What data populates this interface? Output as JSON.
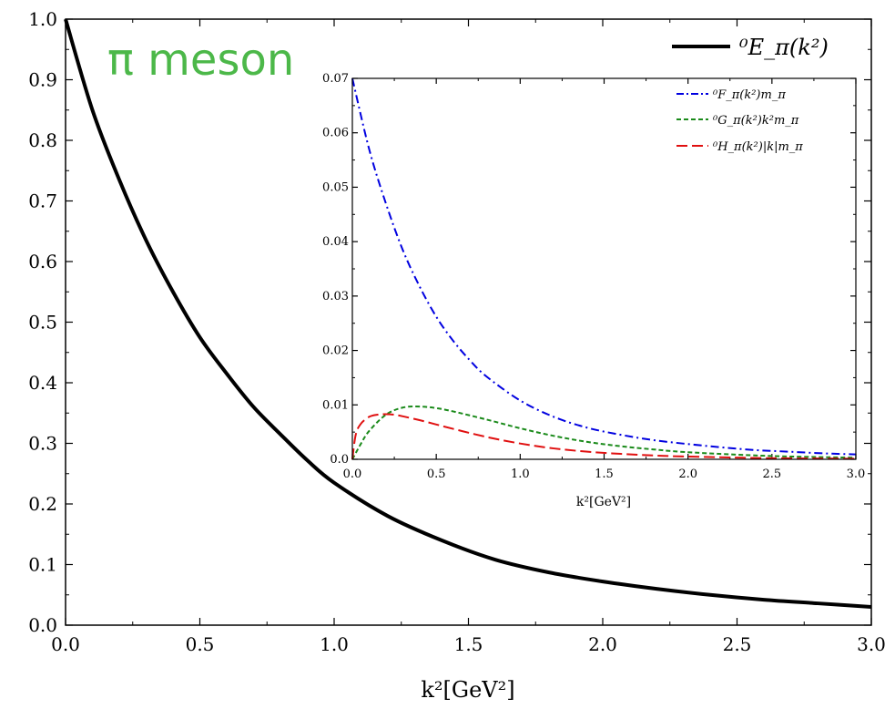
{
  "chart_data": [
    {
      "type": "line",
      "annotation": "π meson",
      "annotation_color": "#4cb849",
      "xlabel": "k²[GeV²]",
      "ylabel": "",
      "xlim": [
        0.0,
        3.0
      ],
      "ylim": [
        0.0,
        1.0
      ],
      "xticks": [
        "0.0",
        "0.5",
        "1.0",
        "1.5",
        "2.0",
        "2.5",
        "3.0"
      ],
      "yticks": [
        "0.0",
        "0.1",
        "0.2",
        "0.3",
        "0.4",
        "0.5",
        "0.6",
        "0.7",
        "0.8",
        "0.9",
        "1.0"
      ],
      "legend_position": "top-right",
      "series": [
        {
          "name": "⁰E_π(k²)",
          "color": "#000000",
          "style": "solid",
          "x": [
            0.0,
            0.1,
            0.2,
            0.3,
            0.4,
            0.5,
            0.6,
            0.7,
            0.8,
            0.9,
            1.0,
            1.2,
            1.4,
            1.6,
            1.8,
            2.0,
            2.2,
            2.4,
            2.6,
            2.8,
            3.0
          ],
          "y": [
            1.0,
            0.85,
            0.735,
            0.635,
            0.55,
            0.475,
            0.415,
            0.36,
            0.315,
            0.272,
            0.235,
            0.18,
            0.14,
            0.108,
            0.087,
            0.072,
            0.06,
            0.05,
            0.042,
            0.036,
            0.03
          ]
        }
      ]
    },
    {
      "type": "line",
      "xlabel": "k²[GeV²]",
      "ylabel": "",
      "xlim": [
        0.0,
        3.0
      ],
      "ylim": [
        0.0,
        0.07
      ],
      "xticks": [
        "0.0",
        "0.5",
        "1.0",
        "1.5",
        "2.0",
        "2.5",
        "3.0"
      ],
      "yticks": [
        "0.0",
        "0.01",
        "0.02",
        "0.03",
        "0.04",
        "0.05",
        "0.06",
        "0.07"
      ],
      "legend_position": "top-right",
      "series": [
        {
          "name": "⁰F_π(k²)m_π",
          "color": "#0000e0",
          "style": "dashdot",
          "x": [
            0.0,
            0.1,
            0.2,
            0.3,
            0.4,
            0.5,
            0.6,
            0.7,
            0.8,
            1.0,
            1.2,
            1.4,
            1.6,
            1.8,
            2.0,
            2.2,
            2.4,
            2.6,
            2.8,
            3.0
          ],
          "y": [
            0.07,
            0.057,
            0.047,
            0.0385,
            0.0318,
            0.0262,
            0.0218,
            0.0182,
            0.0152,
            0.0108,
            0.0078,
            0.0058,
            0.0045,
            0.0035,
            0.0028,
            0.0022,
            0.0017,
            0.0014,
            0.0011,
            0.0009
          ]
        },
        {
          "name": "⁰G_π(k²)k²m_π",
          "color": "#1a8a1a",
          "style": "dashed",
          "x": [
            0.0,
            0.05,
            0.1,
            0.2,
            0.3,
            0.4,
            0.5,
            0.6,
            0.8,
            1.0,
            1.2,
            1.4,
            1.6,
            1.8,
            2.0,
            2.5,
            3.0
          ],
          "y": [
            0.0,
            0.0028,
            0.0052,
            0.0082,
            0.0095,
            0.0097,
            0.0094,
            0.0088,
            0.0073,
            0.0057,
            0.0043,
            0.0032,
            0.0024,
            0.0018,
            0.0013,
            0.0006,
            0.0003
          ]
        },
        {
          "name": "⁰H_π(k²)|k|m_π",
          "color": "#e01010",
          "style": "longdash",
          "x": [
            0.0,
            0.02,
            0.05,
            0.1,
            0.15,
            0.2,
            0.25,
            0.3,
            0.4,
            0.5,
            0.6,
            0.8,
            1.0,
            1.2,
            1.4,
            1.6,
            1.8,
            2.0,
            2.5,
            3.0
          ],
          "y": [
            0.0,
            0.0045,
            0.0065,
            0.0078,
            0.0082,
            0.0083,
            0.0082,
            0.0079,
            0.0072,
            0.0064,
            0.0056,
            0.0041,
            0.0029,
            0.002,
            0.0014,
            0.001,
            0.0007,
            0.0005,
            0.0002,
            0.0001
          ]
        }
      ]
    }
  ]
}
